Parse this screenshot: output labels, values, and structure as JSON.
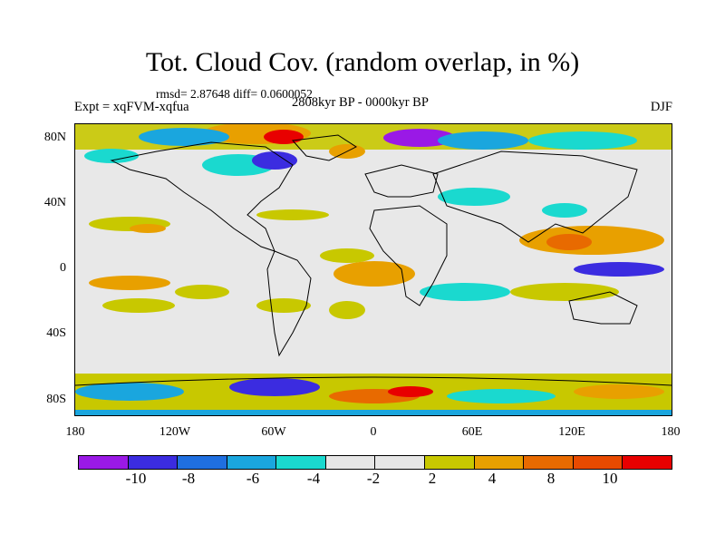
{
  "header": {
    "title": "Tot. Cloud Cov. (random overlap, in %)",
    "stats": "rmsd= 2.87648 diff= 0.0600052",
    "experiment": "Expt = xqFVM-xqfua",
    "period": "2808kyr BP - 0000kyr BP",
    "season": "DJF"
  },
  "axes": {
    "y_labels": [
      "80N",
      "40N",
      "0",
      "40S",
      "80S"
    ],
    "x_labels": [
      "180",
      "120W",
      "60W",
      "0",
      "60E",
      "120E",
      "180"
    ]
  },
  "colorbar": {
    "colors": [
      "#9a19e6",
      "#3b2ce0",
      "#1f6fe0",
      "#1aa6de",
      "#1ad9cf",
      "#e6e6e6",
      "#e6e6e6",
      "#c8c800",
      "#e8a000",
      "#e86a00",
      "#e84a00",
      "#e80000"
    ],
    "labels": [
      "-10",
      "-8",
      "-6",
      "-4",
      "-2",
      "2",
      "4",
      "8",
      "10"
    ]
  },
  "map_colors": {
    "ocean_bg": "#e8e8e8",
    "coast": "#000000"
  }
}
